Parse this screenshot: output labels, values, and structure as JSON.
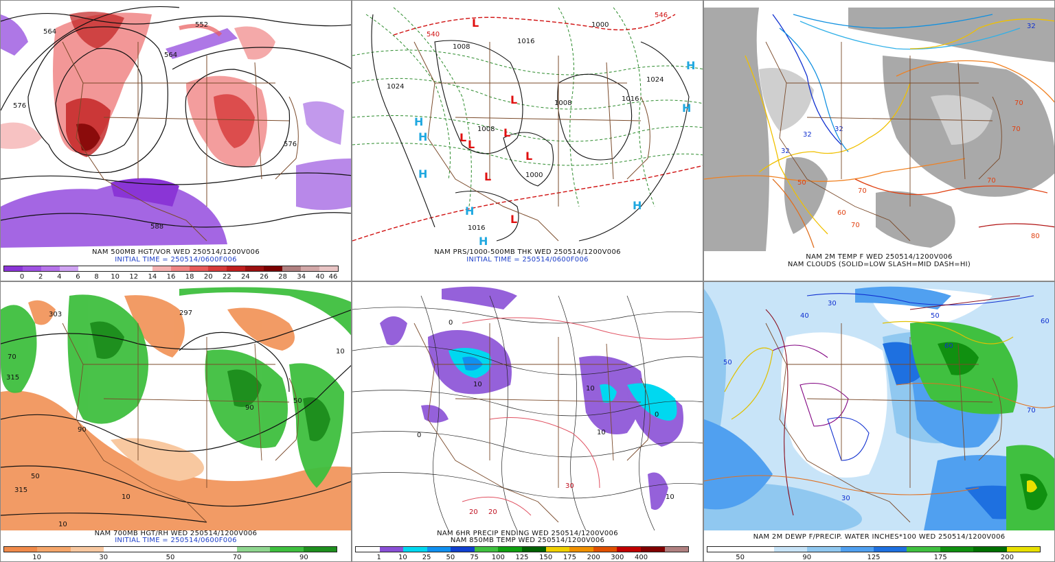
{
  "panels": [
    {
      "caption1": "NAM 500MB HGT/VOR WED 250514/1200V006",
      "caption2": "INITIAL TIME = 250514/0600F006",
      "colorbar": {
        "colors": [
          "#8a35d6",
          "#9f52e2",
          "#b673ea",
          "#cfa3f2",
          "#ffffff",
          "#ffffff",
          "#ffffff",
          "#ffffff",
          "#f5b3b3",
          "#f08585",
          "#e85a5a",
          "#d63a3a",
          "#c01f1f",
          "#9b1010",
          "#7a0000",
          "#b08080",
          "#d2a8a8",
          "#e8c4c4"
        ],
        "labels": [
          "0",
          "2",
          "4",
          "6",
          "8",
          "10",
          "12",
          "14",
          "16",
          "18",
          "20",
          "22",
          "24",
          "26",
          "28",
          "34",
          "40",
          "46"
        ]
      },
      "map_labels": [
        "564",
        "552",
        "564",
        "576",
        "576",
        "588"
      ]
    },
    {
      "caption1": "NAM PRS/1000-500MB THK WED 250514/1200V006",
      "caption2": "INITIAL TIME = 250514/0600F006",
      "map_labels": [
        "1024",
        "1008",
        "1016",
        "1000",
        "1008",
        "1008",
        "1000",
        "1024",
        "1016",
        "1016",
        "540",
        "546",
        "1016"
      ],
      "lows": [
        "L",
        "L",
        "L",
        "L",
        "L",
        "L",
        "L",
        "L"
      ],
      "highs": [
        "H",
        "H",
        "H",
        "H",
        "H",
        "H",
        "H",
        "H"
      ]
    },
    {
      "caption1": "NAM 2M TEMP F WED 250514/1200V006",
      "caption2": "NAM CLOUDS (SOLID=LOW SLASH=MID DASH=HI)",
      "map_labels": [
        "32",
        "32",
        "32",
        "32",
        "70",
        "70",
        "70",
        "70",
        "50",
        "60",
        "70",
        "80"
      ]
    },
    {
      "caption1": "NAM 700MB HGT/RH WED 250514/1200V006",
      "caption2": "INITIAL TIME = 250514/0600F006",
      "colorbar": {
        "colors": [
          "#f08a4a",
          "#f5a66a",
          "#f8c8a0",
          "#ffffff",
          "#ffffff",
          "#ffffff",
          "#ffffff",
          "#8fd68f",
          "#3fbf3f",
          "#1e8f1e"
        ],
        "labels": [
          "10",
          "30",
          "50",
          "70",
          "90"
        ]
      },
      "map_labels": [
        "303",
        "297",
        "315",
        "315",
        "50",
        "70",
        "90",
        "10",
        "90",
        "10",
        "50",
        "10"
      ]
    },
    {
      "caption1": "NAM 6HR PRECIP ENDING WED 250514/1200V006",
      "caption2": "NAM 850MB TEMP WED 250514/1200V006",
      "colorbar": {
        "colors": [
          "#ffffff",
          "#8a50d6",
          "#00d8f0",
          "#1090f0",
          "#1040d0",
          "#40c040",
          "#10a010",
          "#006000",
          "#f0d000",
          "#f09000",
          "#e05000",
          "#c00000",
          "#800000",
          "#b08080"
        ],
        "labels": [
          "1",
          "10",
          "25",
          "50",
          "75",
          "100",
          "125",
          "150",
          "175",
          "200",
          "300",
          "400"
        ]
      },
      "map_labels": [
        "0",
        "10",
        "10",
        "0",
        "10",
        "20",
        "20",
        "30",
        "10",
        "0"
      ]
    },
    {
      "caption1": "NAM 2M DEWP F/PRECIP. WATER INCHES*100 WED 250514/1200V006",
      "colorbar": {
        "colors": [
          "#ffffff",
          "#ffffff",
          "#c8e4f8",
          "#90c8f0",
          "#50a0f0",
          "#1e70e0",
          "#40c040",
          "#109010",
          "#007000",
          "#e8e000"
        ],
        "labels": [
          "50",
          "90",
          "125",
          "175",
          "200"
        ]
      },
      "map_labels": [
        "30",
        "40",
        "50",
        "60",
        "30",
        "50",
        "60",
        "70"
      ]
    }
  ]
}
